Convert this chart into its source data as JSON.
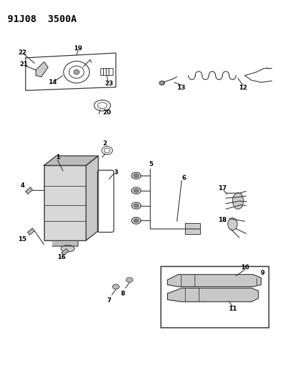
{
  "title": "91J08  3500A",
  "bg_color": "#ffffff",
  "title_fontsize": 10,
  "line_color": "#333333",
  "label_fontsize": 6.5
}
